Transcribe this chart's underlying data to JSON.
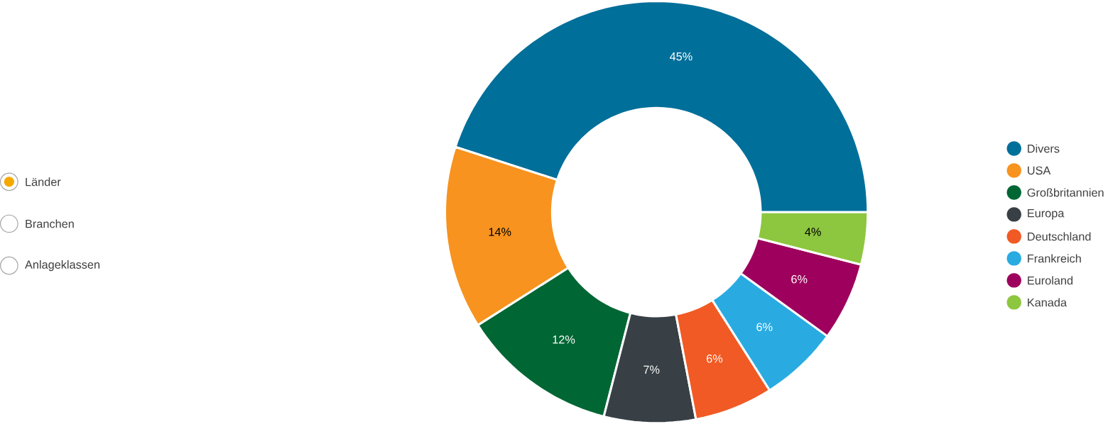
{
  "chart_data": {
    "type": "donut",
    "categories": [
      "Divers",
      "USA",
      "Großbritannien",
      "Europa",
      "Deutschland",
      "Frankreich",
      "Euroland",
      "Kanada"
    ],
    "values": [
      45,
      14,
      12,
      7,
      6,
      6,
      6,
      4
    ],
    "colors": [
      "#006f9a",
      "#f7931e",
      "#006633",
      "#384046",
      "#f15a24",
      "#29abe2",
      "#9e005d",
      "#8dc63f"
    ],
    "value_labels": [
      "45%",
      "14%",
      "12%",
      "7%",
      "6%",
      "6%",
      "6%",
      "4%"
    ],
    "legend": "right",
    "annotations": [
      "Länder",
      "Branchen",
      "Anlageklassen"
    ]
  }
}
